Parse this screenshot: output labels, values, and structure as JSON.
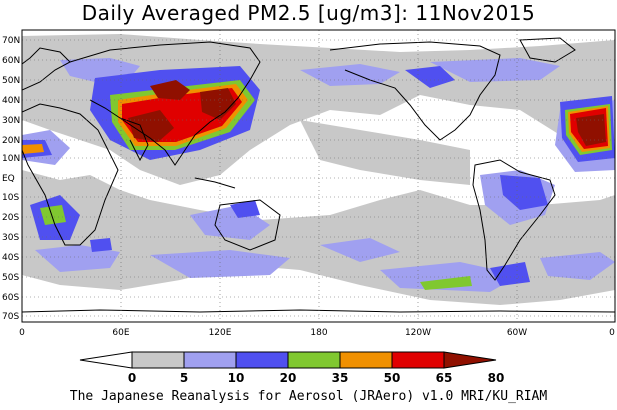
{
  "title": "Daily Averaged PM2.5 [ug/m3]: 11Nov2015",
  "footer": "The Japanese Reanalysis for Aerosol (JRAero) v1.0 MRI/KU_RIAM",
  "map": {
    "latitude_labels": [
      "70N",
      "60N",
      "50N",
      "40N",
      "30N",
      "20N",
      "10N",
      "EQ",
      "10S",
      "20S",
      "30S",
      "40S",
      "50S",
      "60S",
      "70S"
    ],
    "longitude_labels": [
      "0",
      "60E",
      "120E",
      "180",
      "120W",
      "60W",
      "0"
    ],
    "gridlines": "dotted"
  },
  "colorbar": {
    "thresholds": [
      "0",
      "5",
      "10",
      "20",
      "35",
      "50",
      "65",
      "80"
    ],
    "colors": [
      "#ffffff",
      "#c8c8c8",
      "#a0a0f0",
      "#5050f0",
      "#80c830",
      "#f09000",
      "#e00000",
      "#901000"
    ]
  }
}
